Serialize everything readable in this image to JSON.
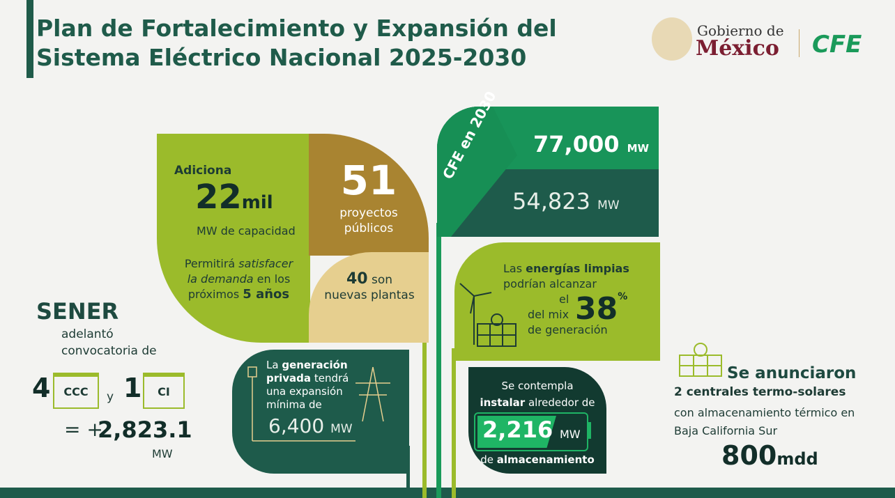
{
  "header": {
    "title_lines": [
      "Plan de Fortalecimiento y Expansión del",
      "Sistema Eléctrico Nacional 2025-2030"
    ],
    "logo": {
      "gobierno": "Gobierno de",
      "mexico": "México",
      "cfe": "CFE"
    }
  },
  "adiciona": {
    "label": "Adiciona",
    "number": "22",
    "unit": "mil",
    "sub": "MW de capacidad",
    "text": [
      "Permitirá",
      "satisfacer",
      "la demanda",
      "en los",
      "próximos",
      "5 años"
    ]
  },
  "proyectos": {
    "number": "51",
    "text": "proyectos públicos"
  },
  "plantas": {
    "number": "40",
    "text_1": "son",
    "text_2": "nuevas plantas"
  },
  "cfe": {
    "label": "CFE en 2030",
    "target": "77,000",
    "target_unit": "MW",
    "current": "54,823",
    "current_unit": "MW"
  },
  "limpias": {
    "text": [
      "Las",
      "energías limpias",
      "podrían alcanzar",
      "el",
      "del mix",
      "de generación"
    ],
    "number": "38",
    "unit": "%"
  },
  "privada": {
    "text": [
      "La",
      "generación privada",
      "tendrá una expansión mínima de"
    ],
    "number": "6,400",
    "unit": "MW"
  },
  "almacenamiento": {
    "line_1": "Se contempla",
    "line_2": [
      "instalar",
      "alrededor de"
    ],
    "number": "2,216",
    "unit": "MW",
    "line_3": [
      "de",
      "almacenamiento"
    ]
  },
  "sener": {
    "title": "SENER",
    "text": "adelantó convocatoria de",
    "count_1": "4",
    "type_1": "CCC",
    "and": "y",
    "count_2": "1",
    "type_2": "CI",
    "equals": "= +",
    "total": "2,823.1",
    "unit": "MW"
  },
  "termo": {
    "title": "Se anunciaron",
    "subtitle": "2 centrales termo-solares",
    "text": "con almacenamiento térmico en Baja California Sur",
    "number": "800",
    "unit": "mdd"
  }
}
